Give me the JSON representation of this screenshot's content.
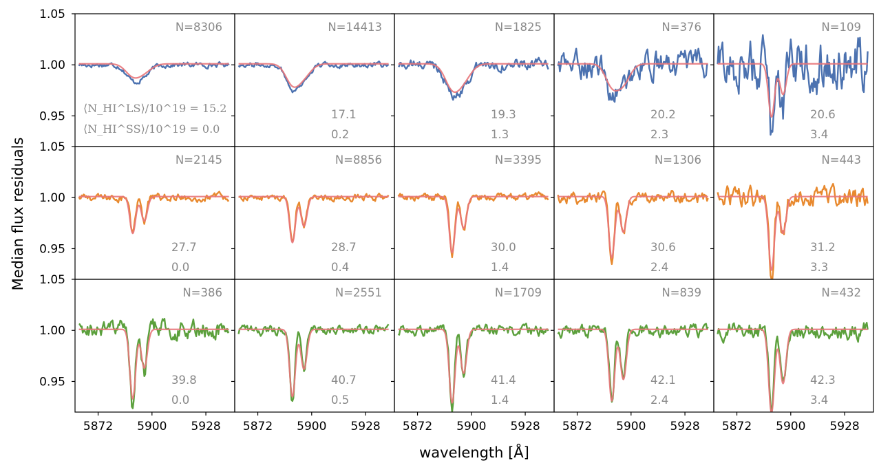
{
  "figure": {
    "ylabel": "Median flux residuals",
    "xlabel": "wavelength [Å]",
    "yticks": [
      "0.95",
      "1.00",
      "1.05"
    ],
    "xticks": [
      "5872",
      "5900",
      "5928"
    ],
    "legend_line1": "⟨N_HI^LS⟩/10^19 = 15.2",
    "legend_line2": "⟨N_HI^SS⟩/10^19 = 0.0"
  },
  "chart_data": {
    "type": "line",
    "layout": "3 rows x 5 columns of small multiples",
    "xlim": [
      5860,
      5943
    ],
    "ylim": [
      0.92,
      1.05
    ],
    "x_ticks": [
      5872,
      5900,
      5928
    ],
    "y_ticks": [
      0.95,
      1.0,
      1.05
    ],
    "xlabel": "wavelength [Å]",
    "ylabel": "Median flux residuals",
    "fit_color": "#e8767a",
    "row_colors": [
      "#4c72b0",
      "#e8892e",
      "#5ba03c"
    ],
    "panels": [
      {
        "row": 0,
        "col": 0,
        "N": "N=8306",
        "nhi_ls": "15.2",
        "nhi_ss": "0.0",
        "color": "#4c72b0",
        "noise": 0.0012,
        "d1": 0.014,
        "d2": 0.009,
        "fd1": 0.011,
        "fd2": 0.007,
        "fw": 3.8
      },
      {
        "row": 0,
        "col": 1,
        "N": "N=14413",
        "nhi_ls": "17.1",
        "nhi_ss": "0.2",
        "color": "#4c72b0",
        "noise": 0.0012,
        "d1": 0.022,
        "d2": 0.012,
        "fd1": 0.019,
        "fd2": 0.011,
        "fw": 3.6
      },
      {
        "row": 0,
        "col": 2,
        "N": "N=1825",
        "nhi_ls": "19.3",
        "nhi_ss": "1.3",
        "color": "#4c72b0",
        "noise": 0.0025,
        "d1": 0.026,
        "d2": 0.016,
        "fd1": 0.022,
        "fd2": 0.014,
        "fw": 3.8
      },
      {
        "row": 0,
        "col": 3,
        "N": "N=376",
        "nhi_ls": "20.2",
        "nhi_ss": "2.3",
        "color": "#4c72b0",
        "noise": 0.006,
        "d1": 0.024,
        "d2": 0.02,
        "fd1": 0.02,
        "fd2": 0.018,
        "fw": 3.4
      },
      {
        "row": 0,
        "col": 4,
        "N": "N=109",
        "nhi_ls": "20.6",
        "nhi_ss": "3.4",
        "color": "#4c72b0",
        "noise": 0.012,
        "d1": 0.06,
        "d2": 0.035,
        "fd1": 0.052,
        "fd2": 0.03,
        "fw": 1.6
      },
      {
        "row": 1,
        "col": 0,
        "N": "N=2145",
        "nhi_ls": "27.7",
        "nhi_ss": "0.0",
        "color": "#e8892e",
        "noise": 0.0018,
        "d1": 0.037,
        "d2": 0.025,
        "fd1": 0.036,
        "fd2": 0.024,
        "fw": 1.5
      },
      {
        "row": 1,
        "col": 1,
        "N": "N=8856",
        "nhi_ls": "28.7",
        "nhi_ss": "0.4",
        "color": "#e8892e",
        "noise": 0.0015,
        "d1": 0.046,
        "d2": 0.03,
        "fd1": 0.045,
        "fd2": 0.029,
        "fw": 1.5
      },
      {
        "row": 1,
        "col": 2,
        "N": "N=3395",
        "nhi_ls": "30.0",
        "nhi_ss": "1.4",
        "color": "#e8892e",
        "noise": 0.0018,
        "d1": 0.057,
        "d2": 0.032,
        "fd1": 0.055,
        "fd2": 0.031,
        "fw": 1.5
      },
      {
        "row": 1,
        "col": 3,
        "N": "N=1306",
        "nhi_ls": "30.6",
        "nhi_ss": "2.4",
        "color": "#e8892e",
        "noise": 0.0028,
        "d1": 0.062,
        "d2": 0.036,
        "fd1": 0.06,
        "fd2": 0.035,
        "fw": 1.5
      },
      {
        "row": 1,
        "col": 4,
        "N": "N=443",
        "nhi_ls": "31.2",
        "nhi_ss": "3.3",
        "color": "#e8892e",
        "noise": 0.0045,
        "d1": 0.078,
        "d2": 0.038,
        "fd1": 0.072,
        "fd2": 0.036,
        "fw": 1.5
      },
      {
        "row": 2,
        "col": 0,
        "N": "N=386",
        "nhi_ls": "39.8",
        "nhi_ss": "0.0",
        "color": "#5ba03c",
        "noise": 0.0045,
        "d1": 0.078,
        "d2": 0.04,
        "fd1": 0.068,
        "fd2": 0.038,
        "fw": 1.5
      },
      {
        "row": 2,
        "col": 1,
        "N": "N=2551",
        "nhi_ls": "40.7",
        "nhi_ss": "0.5",
        "color": "#5ba03c",
        "noise": 0.0022,
        "d1": 0.07,
        "d2": 0.04,
        "fd1": 0.066,
        "fd2": 0.039,
        "fw": 1.5
      },
      {
        "row": 2,
        "col": 2,
        "N": "N=1709",
        "nhi_ls": "41.4",
        "nhi_ss": "1.4",
        "color": "#5ba03c",
        "noise": 0.0025,
        "d1": 0.078,
        "d2": 0.045,
        "fd1": 0.072,
        "fd2": 0.043,
        "fw": 1.5
      },
      {
        "row": 2,
        "col": 3,
        "N": "N=839",
        "nhi_ls": "42.1",
        "nhi_ss": "2.4",
        "color": "#5ba03c",
        "noise": 0.003,
        "d1": 0.072,
        "d2": 0.05,
        "fd1": 0.07,
        "fd2": 0.049,
        "fw": 1.5
      },
      {
        "row": 2,
        "col": 4,
        "N": "N=432",
        "nhi_ls": "42.3",
        "nhi_ss": "3.4",
        "color": "#5ba03c",
        "noise": 0.004,
        "d1": 0.085,
        "d2": 0.055,
        "fd1": 0.082,
        "fd2": 0.053,
        "fw": 1.5
      }
    ]
  }
}
